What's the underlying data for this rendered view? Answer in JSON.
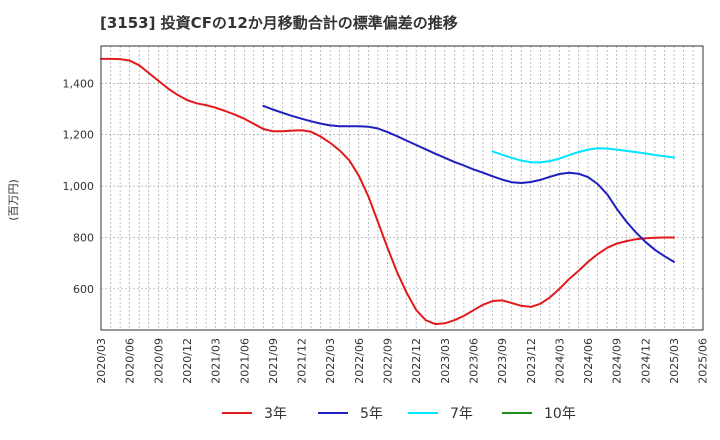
{
  "chart_data": {
    "type": "line",
    "title": "[3153]  投資CFの12か月移動合計の標準偏差の推移",
    "ylabel": "(百万円)",
    "xlabel": "",
    "x_tick_labels": [
      "2020/03",
      "2020/06",
      "2020/09",
      "2020/12",
      "2021/03",
      "2021/06",
      "2021/09",
      "2021/12",
      "2022/03",
      "2022/06",
      "2022/09",
      "2022/12",
      "2023/03",
      "2023/06",
      "2023/09",
      "2023/12",
      "2024/03",
      "2024/06",
      "2024/09",
      "2024/12",
      "2025/03",
      "2025/06"
    ],
    "y_ticks": [
      600,
      800,
      1000,
      1200,
      1400
    ],
    "y_tick_labels": [
      "600",
      "800",
      "1,000",
      "1,200",
      "1,400"
    ],
    "ylim": [
      440,
      1545
    ],
    "grid": true,
    "legend_position": "bottom",
    "series": [
      {
        "name": "3年",
        "color": "#e31a1c",
        "x": [
          "2020/03",
          "2020/04",
          "2020/05",
          "2020/06",
          "2020/07",
          "2020/08",
          "2020/09",
          "2020/10",
          "2020/11",
          "2020/12",
          "2021/01",
          "2021/02",
          "2021/03",
          "2021/04",
          "2021/05",
          "2021/06",
          "2021/07",
          "2021/08",
          "2021/09",
          "2021/10",
          "2021/11",
          "2021/12",
          "2022/01",
          "2022/02",
          "2022/03",
          "2022/04",
          "2022/05",
          "2022/06",
          "2022/07",
          "2022/08",
          "2022/09",
          "2022/10",
          "2022/11",
          "2022/12",
          "2023/01",
          "2023/02",
          "2023/03",
          "2023/04",
          "2023/05",
          "2023/06",
          "2023/07",
          "2023/08",
          "2023/09",
          "2023/10",
          "2023/11",
          "2023/12",
          "2024/01",
          "2024/02",
          "2024/03",
          "2024/04",
          "2024/05",
          "2024/06",
          "2024/07",
          "2024/08",
          "2024/09",
          "2024/10",
          "2024/11",
          "2024/12",
          "2025/01",
          "2025/02",
          "2025/03"
        ],
        "values": [
          1495,
          1495,
          1494,
          1488,
          1470,
          1440,
          1410,
          1380,
          1355,
          1335,
          1322,
          1315,
          1305,
          1292,
          1278,
          1262,
          1242,
          1222,
          1213,
          1213,
          1216,
          1217,
          1211,
          1193,
          1168,
          1138,
          1100,
          1040,
          960,
          860,
          760,
          665,
          585,
          518,
          478,
          463,
          466,
          478,
          495,
          517,
          538,
          553,
          555,
          545,
          534,
          530,
          542,
          567,
          600,
          638,
          670,
          705,
          735,
          760,
          776,
          786,
          793,
          797,
          799,
          800,
          800
        ]
      },
      {
        "name": "5年",
        "color": "#1f1fbf",
        "x": [
          "2021/08",
          "2021/09",
          "2021/10",
          "2021/11",
          "2021/12",
          "2022/01",
          "2022/02",
          "2022/03",
          "2022/04",
          "2022/05",
          "2022/06",
          "2022/07",
          "2022/08",
          "2022/09",
          "2022/10",
          "2022/11",
          "2022/12",
          "2023/01",
          "2023/02",
          "2023/03",
          "2023/04",
          "2023/05",
          "2023/06",
          "2023/07",
          "2023/08",
          "2023/09",
          "2023/10",
          "2023/11",
          "2023/12",
          "2024/01",
          "2024/02",
          "2024/03",
          "2024/04",
          "2024/05",
          "2024/06",
          "2024/07",
          "2024/08",
          "2024/09",
          "2024/10",
          "2024/11",
          "2024/12",
          "2025/01",
          "2025/02",
          "2025/03"
        ],
        "values": [
          1312,
          1298,
          1285,
          1273,
          1262,
          1252,
          1243,
          1236,
          1233,
          1233,
          1233,
          1231,
          1224,
          1210,
          1194,
          1177,
          1160,
          1143,
          1126,
          1110,
          1094,
          1080,
          1065,
          1052,
          1038,
          1025,
          1015,
          1012,
          1016,
          1024,
          1036,
          1047,
          1052,
          1048,
          1035,
          1008,
          968,
          912,
          862,
          820,
          783,
          752,
          727,
          705
        ]
      },
      {
        "name": "7年",
        "color": "#00e5ff",
        "x": [
          "2023/08",
          "2023/09",
          "2023/10",
          "2023/11",
          "2023/12",
          "2024/01",
          "2024/02",
          "2024/03",
          "2024/04",
          "2024/05",
          "2024/06",
          "2024/07",
          "2024/08",
          "2024/09",
          "2024/10",
          "2024/11",
          "2024/12",
          "2025/01",
          "2025/02",
          "2025/03"
        ],
        "values": [
          1135,
          1122,
          1110,
          1099,
          1093,
          1092,
          1097,
          1107,
          1120,
          1132,
          1142,
          1147,
          1146,
          1142,
          1137,
          1132,
          1127,
          1121,
          1116,
          1111
        ]
      },
      {
        "name": "10年",
        "color": "#1a8c1a",
        "x": [],
        "values": []
      }
    ]
  }
}
